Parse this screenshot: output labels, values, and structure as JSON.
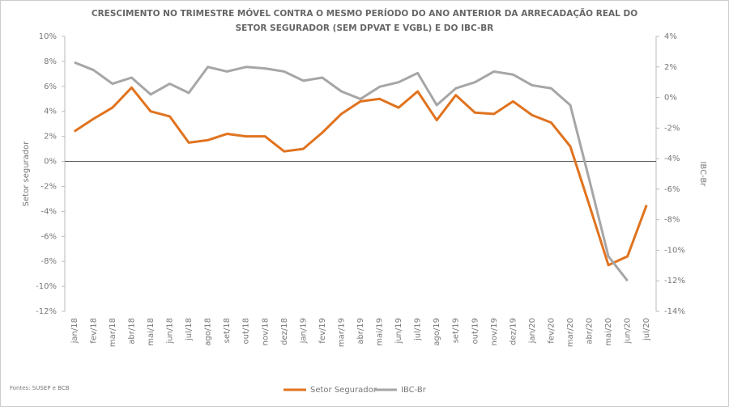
{
  "chart_data": {
    "type": "line",
    "title": [
      "CRESCIMENTO NO TRIMESTRE  MÓVEL CONTRA O MESMO PERÍODO DO ANO ANTERIOR DA ARRECADAÇÃO REAL DO",
      "SETOR SEGURADOR (SEM DPVAT E VGBL) E DO IBC-BR"
    ],
    "y_label": "Setor segurador",
    "y2_label": "IBC-Br",
    "source": "Fontes: SUSEP e BCB",
    "categories": [
      "jan/18",
      "fev/18",
      "mar/18",
      "abr/18",
      "mai/18",
      "jun/18",
      "jul/18",
      "ago/18",
      "set/18",
      "out/18",
      "nov/18",
      "dez/18",
      "jan/19",
      "fev/19",
      "mar/19",
      "abr/19",
      "mai/19",
      "jun/19",
      "jul/19",
      "ago/19",
      "set/19",
      "out/19",
      "nov/19",
      "dez/19",
      "jan/20",
      "fev/20",
      "mar/20",
      "abr/20",
      "mai/20",
      "jun/20",
      "jul/20"
    ],
    "series": [
      {
        "name": "Setor Segurador",
        "color": "#e0731f",
        "values": [
          2.4,
          3.4,
          4.3,
          5.9,
          4.0,
          3.6,
          1.5,
          1.7,
          2.2,
          2.0,
          2.0,
          0.8,
          1.0,
          2.3,
          3.8,
          4.8,
          5.0,
          4.3,
          5.6,
          3.3,
          5.3,
          3.9,
          3.8,
          4.8,
          3.7,
          3.1,
          1.2,
          -3.5,
          -8.3,
          -7.6,
          -3.5
        ]
      },
      {
        "name": "IBC-Br",
        "color": "#a6a6a6",
        "axis": "y2",
        "values": [
          2.3,
          1.8,
          0.9,
          1.3,
          0.2,
          0.9,
          0.3,
          2.0,
          1.7,
          2.0,
          1.9,
          1.7,
          1.1,
          1.3,
          0.4,
          -0.1,
          0.7,
          1.0,
          1.6,
          -0.5,
          0.6,
          1.0,
          1.7,
          1.5,
          0.8,
          0.6,
          -0.5,
          -5.4,
          -10.4,
          -12.0,
          null
        ]
      }
    ],
    "ylim": [
      -12,
      10
    ],
    "yticks": [
      {
        "value": -12,
        "label": "-12%"
      },
      {
        "value": -10,
        "label": "-10%"
      },
      {
        "value": -8,
        "label": "-8%"
      },
      {
        "value": -6,
        "label": "-6%"
      },
      {
        "value": -4,
        "label": "-4%"
      },
      {
        "value": -2,
        "label": "-2%"
      },
      {
        "value": 0,
        "label": "0%"
      },
      {
        "value": 2,
        "label": "2%"
      },
      {
        "value": 4,
        "label": "4%"
      },
      {
        "value": 6,
        "label": "6%"
      },
      {
        "value": 8,
        "label": "8%"
      },
      {
        "value": 10,
        "label": "10%"
      }
    ],
    "y2lim": [
      -14,
      4
    ],
    "y2ticks": [
      {
        "value": -14,
        "label": "-14%"
      },
      {
        "value": -12,
        "label": "-12%"
      },
      {
        "value": -10,
        "label": "-10%"
      },
      {
        "value": -8,
        "label": "-8%"
      },
      {
        "value": -6,
        "label": "-6%"
      },
      {
        "value": -4,
        "label": "-4%"
      },
      {
        "value": -2,
        "label": "-2%"
      },
      {
        "value": 0,
        "label": "0%"
      },
      {
        "value": 2,
        "label": "2%"
      },
      {
        "value": 4,
        "label": "4%"
      }
    ],
    "legend": "bottom"
  }
}
